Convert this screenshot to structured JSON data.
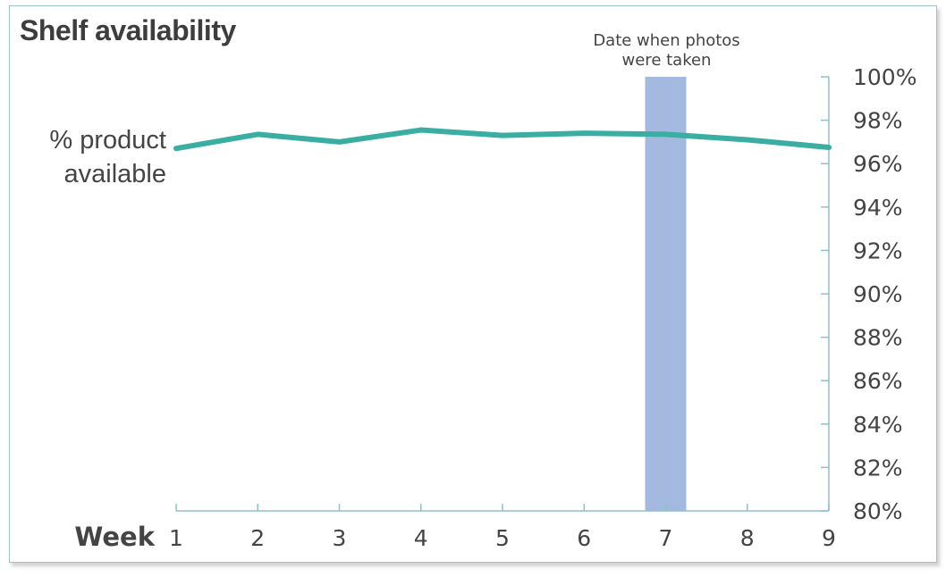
{
  "title": "Shelf availability",
  "chart_data": {
    "type": "line",
    "x_axis_label": "Week",
    "x": [
      1,
      2,
      3,
      4,
      5,
      6,
      7,
      8,
      9
    ],
    "series": [
      {
        "name": "% product available",
        "name_lines": [
          "% product",
          "available"
        ],
        "color": "#3aaea3",
        "values": [
          96.7,
          97.35,
          97.0,
          97.55,
          97.3,
          97.4,
          97.35,
          97.1,
          96.75
        ]
      }
    ],
    "y_axis": {
      "position": "right",
      "min": 80,
      "max": 100,
      "step": 2,
      "tick_labels": [
        "80%",
        "82%",
        "84%",
        "86%",
        "88%",
        "90%",
        "92%",
        "94%",
        "96%",
        "98%",
        "100%"
      ]
    },
    "highlight": {
      "x": 7,
      "label_lines": [
        "Date when photos",
        "were taken"
      ],
      "color": "#a3b9e0"
    },
    "grid": false,
    "legend": "none"
  }
}
